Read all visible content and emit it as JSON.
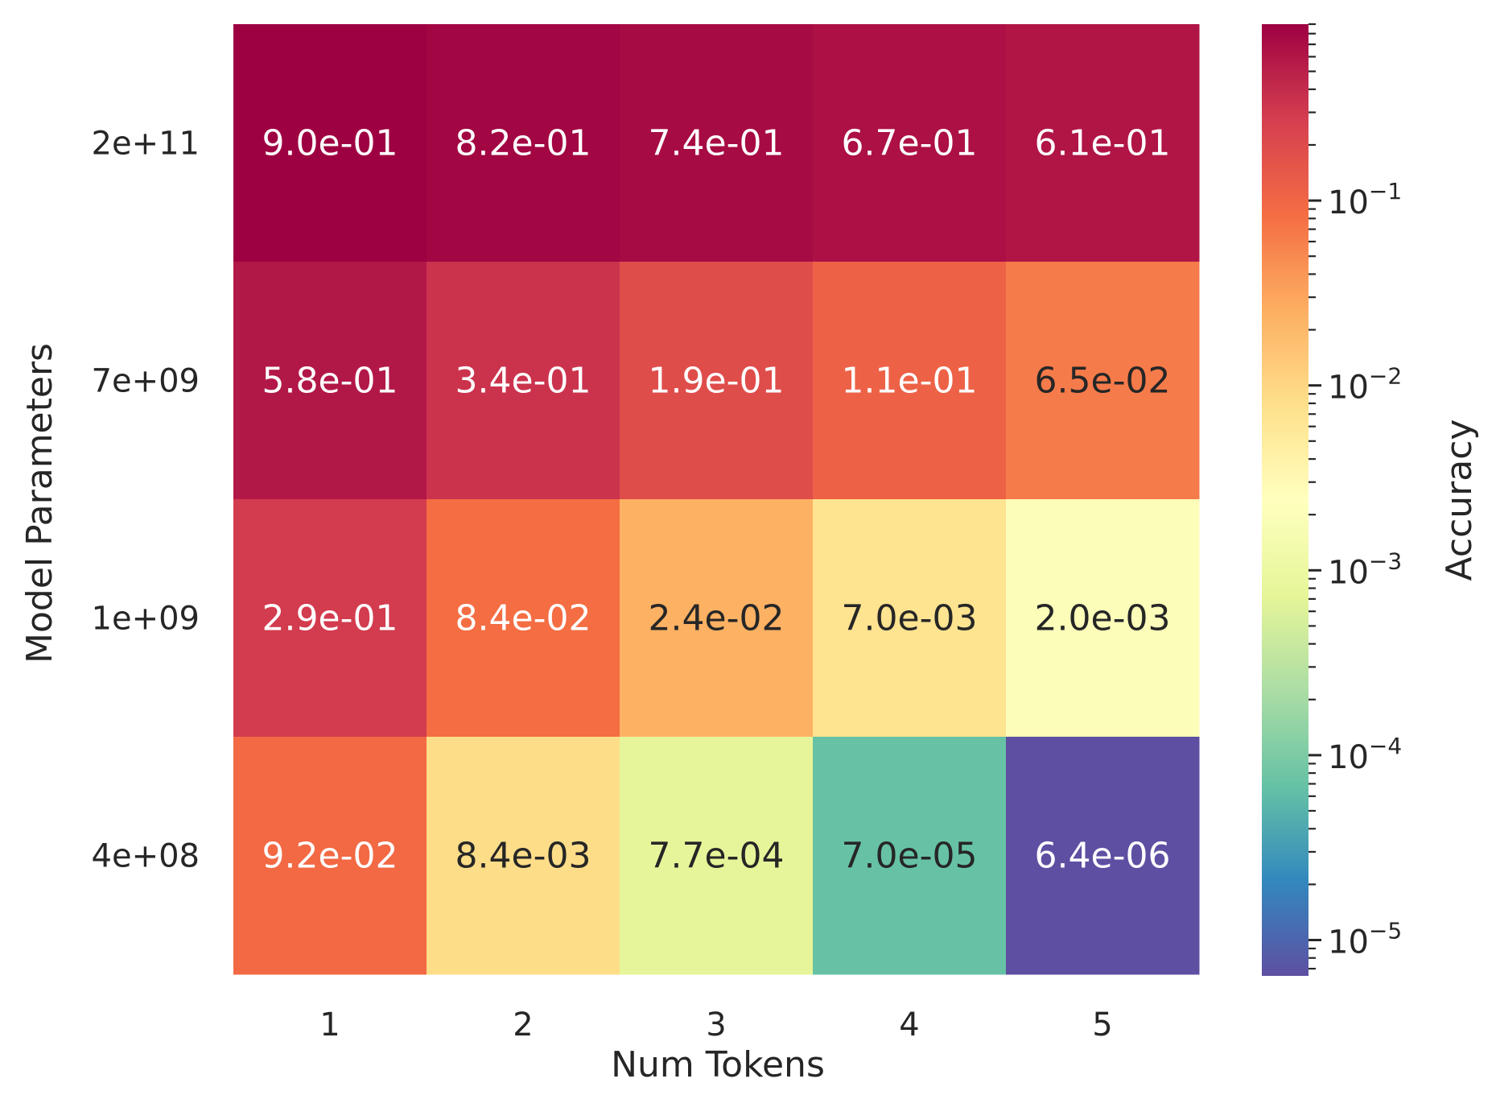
{
  "chart_data": {
    "type": "heatmap",
    "title": "",
    "xlabel": "Num Tokens",
    "ylabel": "Model Parameters",
    "x_categories": [
      "1",
      "2",
      "3",
      "4",
      "5"
    ],
    "y_categories": [
      "2e+11",
      "7e+09",
      "1e+09",
      "4e+08"
    ],
    "values": [
      [
        0.9,
        0.82,
        0.74,
        0.67,
        0.61
      ],
      [
        0.58,
        0.34,
        0.19,
        0.11,
        0.065
      ],
      [
        0.29,
        0.084,
        0.024,
        0.007,
        0.002
      ],
      [
        0.092,
        0.0084,
        0.00077,
        7e-05,
        6.4e-06
      ]
    ],
    "labels": [
      [
        "9.0e-01",
        "8.2e-01",
        "7.4e-01",
        "6.7e-01",
        "6.1e-01"
      ],
      [
        "5.8e-01",
        "3.4e-01",
        "1.9e-01",
        "1.1e-01",
        "6.5e-02"
      ],
      [
        "2.9e-01",
        "8.4e-02",
        "2.4e-02",
        "7.0e-03",
        "2.0e-03"
      ],
      [
        "9.2e-02",
        "8.4e-03",
        "7.7e-04",
        "7.0e-05",
        "6.4e-06"
      ]
    ],
    "colorbar": {
      "label": "Accuracy",
      "scale": "log",
      "range": [
        6.4e-06,
        0.9
      ],
      "colormap": "Spectral",
      "ticks": [
        {
          "exp": -1,
          "value": 0.1,
          "label": "10",
          "sup": "−1"
        },
        {
          "exp": -2,
          "value": 0.01,
          "label": "10",
          "sup": "−2"
        },
        {
          "exp": -3,
          "value": 0.001,
          "label": "10",
          "sup": "−3"
        },
        {
          "exp": -4,
          "value": 0.0001,
          "label": "10",
          "sup": "−4"
        },
        {
          "exp": -5,
          "value": 1e-05,
          "label": "10",
          "sup": "−5"
        }
      ]
    },
    "colors": {
      "stops": [
        "#5e4fa2",
        "#3288bd",
        "#66c2a5",
        "#abdda4",
        "#e6f598",
        "#ffffbf",
        "#fee08b",
        "#fdae61",
        "#f46d43",
        "#d53e4f",
        "#9e0142"
      ],
      "text_light": "#ffffff",
      "text_dark": "#262626",
      "axis_text": "#262626"
    }
  }
}
